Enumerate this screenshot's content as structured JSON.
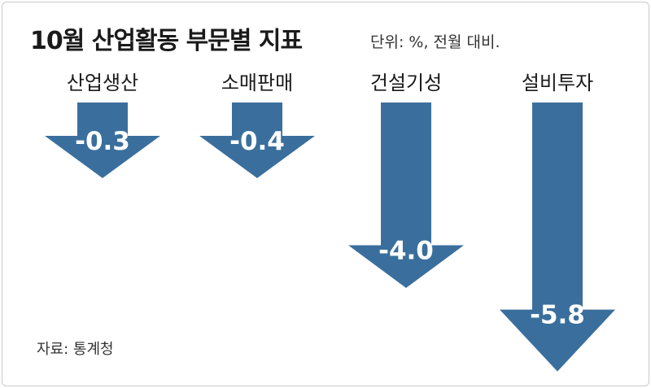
{
  "title": "10월 산업활동 부문별 지표",
  "unit_note": "단위: %, 전월 대비.",
  "source": "자료: 통계청",
  "colors": {
    "arrow": "#3a6f9d",
    "text": "#1a1a1a"
  },
  "chart_data": {
    "type": "bar",
    "orientation": "vertical-down-arrows",
    "categories": [
      "산업생산",
      "소매판매",
      "건설기성",
      "설비투자"
    ],
    "values": [
      -0.3,
      -0.4,
      -4.0,
      -5.8
    ],
    "value_labels": [
      "-0.3",
      "-0.4",
      "-4.0",
      "-5.8"
    ],
    "title": "10월 산업활동 부문별 지표",
    "units": "%, 전월 대비"
  }
}
